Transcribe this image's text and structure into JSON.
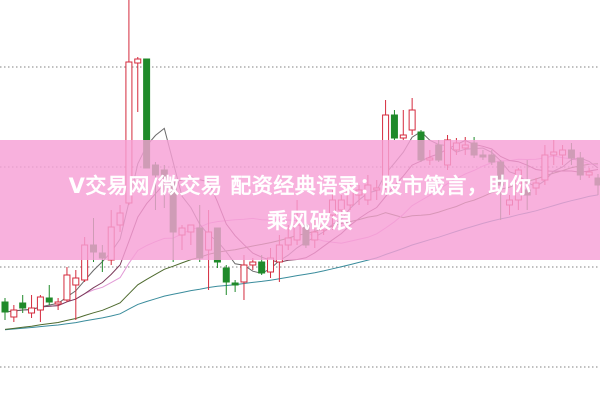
{
  "title": {
    "line1": "V交易网/微交易 配资经典语录：股市箴言，助你",
    "line2": "乘风破浪"
  },
  "colors": {
    "up": "#d42a3c",
    "down": "#1f8a2a",
    "grid": "#9a9a9a",
    "banner": "#f6a0d6",
    "ma5": "#6a6a6a",
    "ma10": "#7a3a5a",
    "ma20": "#e29ad6",
    "ma30": "#4e6a2e",
    "ma60": "#3a8c9c"
  },
  "chart_data": {
    "type": "candlestick",
    "title": "",
    "xlabel": "",
    "ylabel": "",
    "ylim": [
      0,
      400
    ],
    "grid": {
      "horizontal": true,
      "style": "dotted",
      "levels": [
        33,
        133,
        233,
        333
      ]
    },
    "moving_averages": [
      5,
      10,
      20,
      30,
      60
    ],
    "candles": [
      [
        98,
        88,
        102,
        80
      ],
      [
        83,
        90,
        95,
        78
      ],
      [
        97,
        92,
        105,
        87
      ],
      [
        87,
        92,
        105,
        82
      ],
      [
        90,
        103,
        105,
        78
      ],
      [
        102,
        98,
        115,
        95
      ],
      [
        96,
        98,
        102,
        90
      ],
      [
        100,
        125,
        133,
        98
      ],
      [
        115,
        122,
        130,
        80
      ],
      [
        120,
        155,
        163,
        118
      ],
      [
        155,
        148,
        182,
        138
      ],
      [
        147,
        142,
        155,
        128
      ],
      [
        140,
        173,
        190,
        135
      ],
      [
        175,
        187,
        195,
        168
      ],
      [
        197,
        338,
        400,
        195
      ],
      [
        337,
        341,
        343,
        288
      ],
      [
        341,
        232,
        341,
        232
      ],
      [
        235,
        225,
        238,
        190
      ],
      [
        230,
        222,
        235,
        192
      ],
      [
        217,
        168,
        217,
        138
      ],
      [
        165,
        172,
        175,
        150
      ],
      [
        168,
        175,
        175,
        155
      ],
      [
        172,
        142,
        195,
        138
      ],
      [
        150,
        168,
        190,
        110
      ],
      [
        172,
        138,
        172,
        132
      ],
      [
        132,
        118,
        135,
        105
      ],
      [
        117,
        115,
        120,
        108
      ],
      [
        118,
        135,
        145,
        100
      ],
      [
        135,
        138,
        142,
        130
      ],
      [
        138,
        127,
        145,
        125
      ],
      [
        128,
        142,
        152,
        122
      ],
      [
        138,
        155,
        165,
        118
      ],
      [
        155,
        162,
        175,
        150
      ],
      [
        160,
        175,
        200,
        155
      ],
      [
        175,
        155,
        185,
        152
      ],
      [
        160,
        168,
        180,
        152
      ],
      [
        170,
        180,
        190,
        165
      ],
      [
        185,
        200,
        210,
        170
      ],
      [
        190,
        200,
        205,
        185
      ],
      [
        195,
        210,
        220,
        190
      ],
      [
        205,
        210,
        215,
        195
      ],
      [
        200,
        215,
        225,
        195
      ],
      [
        210,
        212,
        220,
        200
      ],
      [
        215,
        285,
        300,
        210
      ],
      [
        285,
        262,
        290,
        260
      ],
      [
        262,
        265,
        290,
        260
      ],
      [
        270,
        290,
        302,
        265
      ],
      [
        268,
        240,
        270,
        238
      ],
      [
        240,
        242,
        250,
        235
      ],
      [
        255,
        240,
        260,
        238
      ],
      [
        235,
        260,
        265,
        230
      ],
      [
        250,
        257,
        262,
        245
      ],
      [
        252,
        255,
        263,
        245
      ],
      [
        257,
        245,
        263,
        242
      ],
      [
        245,
        243,
        250,
        240
      ],
      [
        245,
        238,
        250,
        235
      ],
      [
        238,
        215,
        240,
        180
      ],
      [
        195,
        200,
        205,
        185
      ],
      [
        200,
        230,
        232,
        190
      ],
      [
        210,
        205,
        240,
        190
      ],
      [
        212,
        217,
        222,
        205
      ],
      [
        220,
        245,
        255,
        215
      ],
      [
        245,
        248,
        260,
        235
      ],
      [
        245,
        250,
        255,
        235
      ],
      [
        250,
        242,
        257,
        235
      ],
      [
        242,
        225,
        248,
        220
      ],
      [
        225,
        228,
        232,
        222
      ],
      [
        222,
        215,
        226,
        205
      ]
    ]
  }
}
